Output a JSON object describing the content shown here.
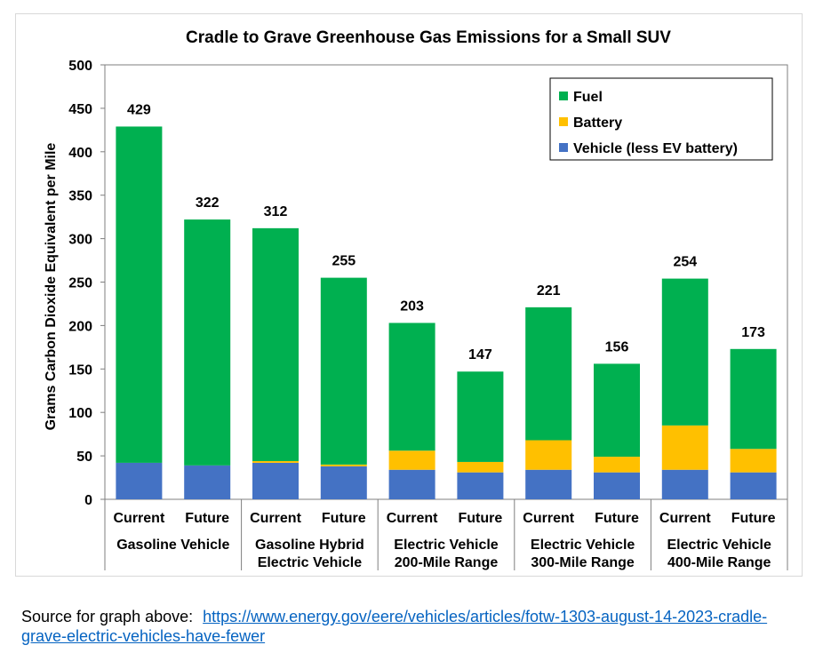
{
  "chart_data": {
    "type": "bar",
    "stacked": true,
    "title": "Cradle to Grave Greenhouse Gas Emissions for a Small SUV",
    "ylabel": "Grams Carbon Dioxide Equivalent per Mile",
    "xlabel": "",
    "ylim": [
      0,
      500
    ],
    "yticks": [
      "0",
      "50",
      "100",
      "150",
      "200",
      "250",
      "300",
      "350",
      "400",
      "450",
      "500"
    ],
    "grid": false,
    "legend_position": "top-right",
    "categories": [
      "Current",
      "Future",
      "Current",
      "Future",
      "Current",
      "Future",
      "Current",
      "Future",
      "Current",
      "Future"
    ],
    "groups": [
      {
        "label_lines": [
          "Gasoline Vehicle"
        ],
        "members": 2
      },
      {
        "label_lines": [
          "Gasoline Hybrid",
          "Electric Vehicle"
        ],
        "members": 2
      },
      {
        "label_lines": [
          "Electric Vehicle",
          "200-Mile Range"
        ],
        "members": 2
      },
      {
        "label_lines": [
          "Electric Vehicle",
          "300-Mile Range"
        ],
        "members": 2
      },
      {
        "label_lines": [
          "Electric Vehicle",
          "400-Mile Range"
        ],
        "members": 2
      }
    ],
    "series": [
      {
        "name": "Vehicle (less EV battery)",
        "color": "#4472c4",
        "values": [
          42,
          39,
          42,
          38,
          34,
          31,
          34,
          31,
          34,
          31
        ]
      },
      {
        "name": "Battery",
        "color": "#ffc000",
        "values": [
          0,
          0,
          2,
          2,
          22,
          12,
          34,
          18,
          51,
          27
        ]
      },
      {
        "name": "Fuel",
        "color": "#00b050",
        "values": [
          387,
          283,
          268,
          215,
          147,
          104,
          153,
          107,
          169,
          115
        ]
      }
    ],
    "legend_order": [
      "Fuel",
      "Battery",
      "Vehicle (less EV battery)"
    ],
    "totals": [
      "429",
      "322",
      "312",
      "255",
      "203",
      "147",
      "221",
      "156",
      "254",
      "173"
    ]
  },
  "source": {
    "prefix": "Source for graph above:",
    "link_text": "https://www.energy.gov/eere/vehicles/articles/fotw-1303-august-14-2023-cradle-grave-electric-vehicles-have-fewer"
  }
}
